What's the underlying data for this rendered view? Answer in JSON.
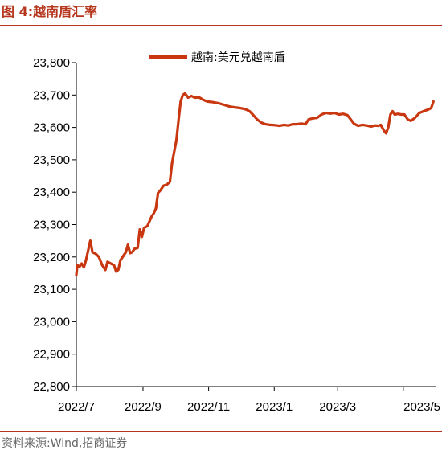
{
  "figure": {
    "label": "图 4:",
    "title": "越南盾汇率",
    "source": "资料来源:Wind,招商证券"
  },
  "colors": {
    "accent": "#b5361c",
    "series": "#c8370f"
  },
  "chart_data": {
    "type": "line",
    "title": "",
    "xlabel": "",
    "ylabel": "",
    "ylim": [
      22800,
      23800
    ],
    "y_ticks": [
      "22,800",
      "22,900",
      "23,000",
      "23,100",
      "23,200",
      "23,300",
      "23,400",
      "23,500",
      "23,600",
      "23,700",
      "23,800"
    ],
    "x_tick_labels": [
      "2022/7",
      "2022/9",
      "2022/11",
      "2023/1",
      "2023/3",
      "2023/5"
    ],
    "x_tick_dates": [
      "2022-07-01",
      "2022-09-01",
      "2022-11-01",
      "2023-01-01",
      "2023-03-01",
      "2023-05-01"
    ],
    "xlim": [
      "2022-07-01",
      "2023-05-31"
    ],
    "grid": false,
    "legend_position": "top-center",
    "series": [
      {
        "name": "越南:美元兑越南盾",
        "points": [
          [
            "2022-07-01",
            23145
          ],
          [
            "2022-07-02",
            23175
          ],
          [
            "2022-07-04",
            23170
          ],
          [
            "2022-07-06",
            23180
          ],
          [
            "2022-07-08",
            23168
          ],
          [
            "2022-07-10",
            23190
          ],
          [
            "2022-07-12",
            23220
          ],
          [
            "2022-07-14",
            23250
          ],
          [
            "2022-07-16",
            23215
          ],
          [
            "2022-07-19",
            23210
          ],
          [
            "2022-07-22",
            23200
          ],
          [
            "2022-07-25",
            23175
          ],
          [
            "2022-07-28",
            23160
          ],
          [
            "2022-07-30",
            23185
          ],
          [
            "2022-08-02",
            23180
          ],
          [
            "2022-08-05",
            23175
          ],
          [
            "2022-08-07",
            23155
          ],
          [
            "2022-08-09",
            23160
          ],
          [
            "2022-08-11",
            23190
          ],
          [
            "2022-08-14",
            23205
          ],
          [
            "2022-08-16",
            23215
          ],
          [
            "2022-08-18",
            23238
          ],
          [
            "2022-08-20",
            23212
          ],
          [
            "2022-08-22",
            23215
          ],
          [
            "2022-08-24",
            23225
          ],
          [
            "2022-08-27",
            23228
          ],
          [
            "2022-08-29",
            23285
          ],
          [
            "2022-08-31",
            23262
          ],
          [
            "2022-09-02",
            23290
          ],
          [
            "2022-09-05",
            23295
          ],
          [
            "2022-09-07",
            23310
          ],
          [
            "2022-09-09",
            23325
          ],
          [
            "2022-09-11",
            23335
          ],
          [
            "2022-09-13",
            23350
          ],
          [
            "2022-09-15",
            23398
          ],
          [
            "2022-09-17",
            23405
          ],
          [
            "2022-09-20",
            23420
          ],
          [
            "2022-09-23",
            23423
          ],
          [
            "2022-09-26",
            23432
          ],
          [
            "2022-09-28",
            23490
          ],
          [
            "2022-09-30",
            23525
          ],
          [
            "2022-10-02",
            23560
          ],
          [
            "2022-10-04",
            23620
          ],
          [
            "2022-10-06",
            23680
          ],
          [
            "2022-10-08",
            23700
          ],
          [
            "2022-10-10",
            23705
          ],
          [
            "2022-10-13",
            23692
          ],
          [
            "2022-10-16",
            23697
          ],
          [
            "2022-10-19",
            23692
          ],
          [
            "2022-10-23",
            23693
          ],
          [
            "2022-10-27",
            23685
          ],
          [
            "2022-10-31",
            23680
          ],
          [
            "2022-11-05",
            23678
          ],
          [
            "2022-11-10",
            23675
          ],
          [
            "2022-11-15",
            23670
          ],
          [
            "2022-11-20",
            23665
          ],
          [
            "2022-11-25",
            23662
          ],
          [
            "2022-11-30",
            23660
          ],
          [
            "2022-12-03",
            23658
          ],
          [
            "2022-12-06",
            23655
          ],
          [
            "2022-12-09",
            23650
          ],
          [
            "2022-12-12",
            23640
          ],
          [
            "2022-12-16",
            23625
          ],
          [
            "2022-12-20",
            23615
          ],
          [
            "2022-12-24",
            23610
          ],
          [
            "2022-12-28",
            23608
          ],
          [
            "2023-01-02",
            23607
          ],
          [
            "2023-01-06",
            23605
          ],
          [
            "2023-01-10",
            23608
          ],
          [
            "2023-01-14",
            23606
          ],
          [
            "2023-01-18",
            23610
          ],
          [
            "2023-01-22",
            23610
          ],
          [
            "2023-01-26",
            23612
          ],
          [
            "2023-01-30",
            23610
          ],
          [
            "2023-02-02",
            23625
          ],
          [
            "2023-02-06",
            23628
          ],
          [
            "2023-02-10",
            23630
          ],
          [
            "2023-02-14",
            23640
          ],
          [
            "2023-02-18",
            23645
          ],
          [
            "2023-02-22",
            23643
          ],
          [
            "2023-02-26",
            23645
          ],
          [
            "2023-03-02",
            23640
          ],
          [
            "2023-03-06",
            23642
          ],
          [
            "2023-03-10",
            23638
          ],
          [
            "2023-03-13",
            23625
          ],
          [
            "2023-03-16",
            23612
          ],
          [
            "2023-03-20",
            23605
          ],
          [
            "2023-03-24",
            23608
          ],
          [
            "2023-03-28",
            23606
          ],
          [
            "2023-04-01",
            23603
          ],
          [
            "2023-04-05",
            23606
          ],
          [
            "2023-04-08",
            23605
          ],
          [
            "2023-04-10",
            23608
          ],
          [
            "2023-04-13",
            23590
          ],
          [
            "2023-04-15",
            23582
          ],
          [
            "2023-04-17",
            23600
          ],
          [
            "2023-04-19",
            23640
          ],
          [
            "2023-04-21",
            23650
          ],
          [
            "2023-04-23",
            23640
          ],
          [
            "2023-04-26",
            23642
          ],
          [
            "2023-04-29",
            23640
          ],
          [
            "2023-05-02",
            23640
          ],
          [
            "2023-05-05",
            23625
          ],
          [
            "2023-05-08",
            23620
          ],
          [
            "2023-05-12",
            23630
          ],
          [
            "2023-05-16",
            23645
          ],
          [
            "2023-05-20",
            23650
          ],
          [
            "2023-05-24",
            23655
          ],
          [
            "2023-05-27",
            23660
          ],
          [
            "2023-05-29",
            23680
          ]
        ]
      }
    ]
  }
}
